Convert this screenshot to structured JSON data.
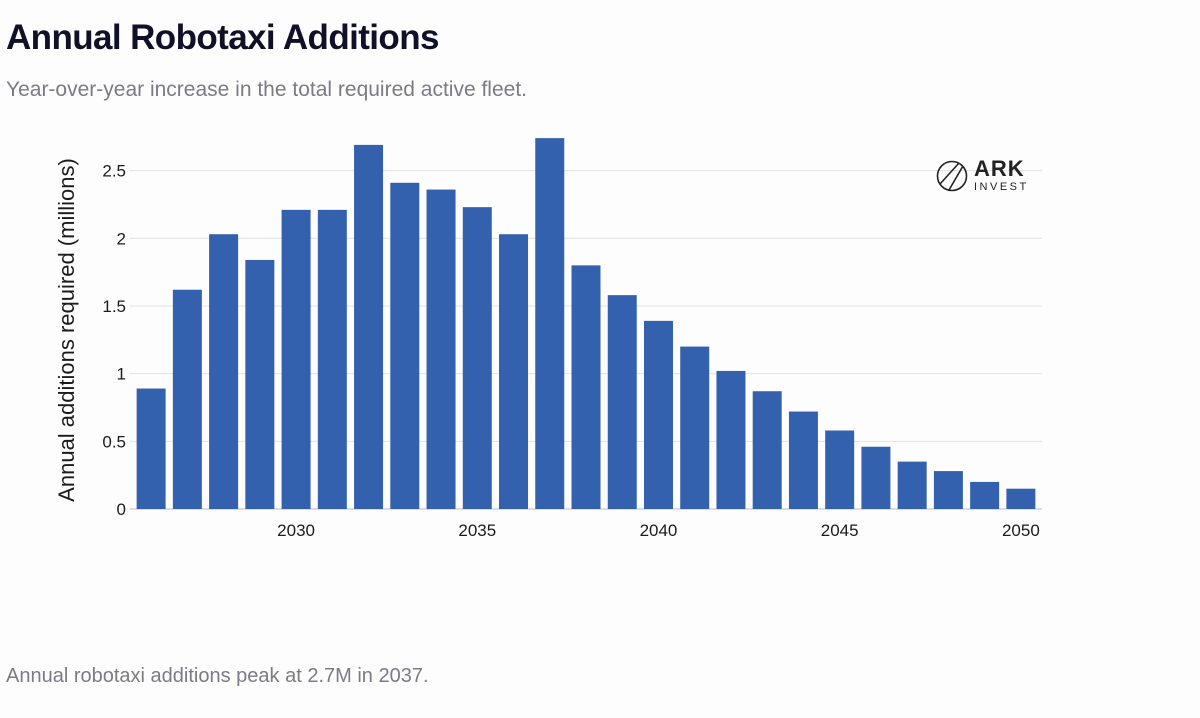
{
  "header": {
    "title": "Annual Robotaxi Additions",
    "subtitle": "Year-over-year increase in the total required active fleet."
  },
  "footnote": "Annual robotaxi additions peak at 2.7M in 2037.",
  "logo": {
    "name": "ARK",
    "sub": "INVEST",
    "icon": "ark-logo-icon"
  },
  "colors": {
    "bar": "#3361ad"
  },
  "chart_data": {
    "type": "bar",
    "title": "Annual Robotaxi Additions",
    "subtitle": "Year-over-year increase in the total required active fleet.",
    "xlabel": "",
    "ylabel": "Annual additions required (millions)",
    "x": [
      2026,
      2027,
      2028,
      2029,
      2030,
      2031,
      2032,
      2033,
      2034,
      2035,
      2036,
      2037,
      2038,
      2039,
      2040,
      2041,
      2042,
      2043,
      2044,
      2045,
      2046,
      2047,
      2048,
      2049,
      2050
    ],
    "values": [
      0.89,
      1.62,
      2.03,
      1.84,
      2.21,
      2.21,
      2.69,
      2.41,
      2.36,
      2.23,
      2.03,
      2.74,
      1.8,
      1.58,
      1.39,
      1.2,
      1.02,
      0.87,
      0.72,
      0.58,
      0.46,
      0.35,
      0.28,
      0.2,
      0.15
    ],
    "xticks": [
      2030,
      2035,
      2040,
      2045,
      2050
    ],
    "xtick_labels": [
      "2030",
      "2035",
      "2040",
      "2045",
      "2050"
    ],
    "yticks": [
      0,
      0.5,
      1,
      1.5,
      2,
      2.5
    ],
    "ytick_labels": [
      "0",
      "0.5",
      "1",
      "1.5",
      "2",
      "2.5"
    ],
    "ylim": [
      0,
      2.8
    ],
    "grid": true,
    "legend": false
  }
}
